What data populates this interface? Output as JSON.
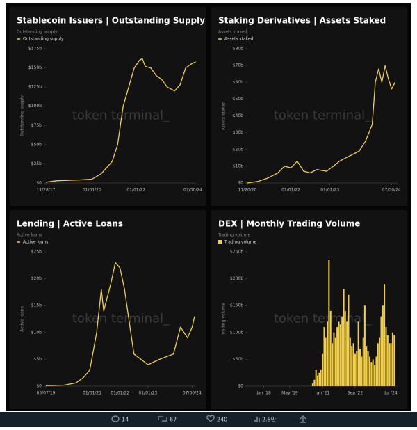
{
  "chart_data": [
    {
      "type": "line",
      "title": "Stablecoin Issuers | Outstanding Supply",
      "subtitle": "Outstanding supply",
      "y_label": "Outstanding supply",
      "watermark": "token terminal_",
      "x": [
        "2017-11-28",
        "2018-06-01",
        "2019-06-01",
        "2020-01-01",
        "2020-06-01",
        "2020-12-01",
        "2021-03-01",
        "2021-06-01",
        "2021-09-01",
        "2021-12-01",
        "2022-03-01",
        "2022-04-15",
        "2022-06-01",
        "2022-09-01",
        "2022-12-01",
        "2023-03-01",
        "2023-06-01",
        "2023-10-01",
        "2024-01-01",
        "2024-04-01",
        "2024-07-01",
        "2024-09-15"
      ],
      "series": [
        {
          "name": "Outstanding supply",
          "color": "#f2cf45",
          "values": [
            1,
            3,
            4,
            5,
            12,
            28,
            50,
            100,
            125,
            150,
            160,
            162,
            152,
            150,
            140,
            135,
            125,
            120,
            128,
            150,
            155,
            158
          ]
        }
      ],
      "xlim": [
        "2017-11-28",
        "2024-09-20"
      ],
      "xticks": [
        {
          "value": "2017-11-28",
          "label": "11/28/17"
        },
        {
          "value": "2020-01-01",
          "label": "01/01/20"
        },
        {
          "value": "2022-01-01",
          "label": "01/01/22"
        },
        {
          "value": "2024-07-30",
          "label": "07/30/24"
        }
      ],
      "ylim": [
        0,
        175
      ],
      "yticks": [
        {
          "value": 0,
          "label": "$0"
        },
        {
          "value": 25,
          "label": "$25b"
        },
        {
          "value": 50,
          "label": "$50b"
        },
        {
          "value": 75,
          "label": "$75b"
        },
        {
          "value": 100,
          "label": "$100b"
        },
        {
          "value": 125,
          "label": "$125b"
        },
        {
          "value": 150,
          "label": "$150b"
        },
        {
          "value": 175,
          "label": "$175b"
        }
      ]
    },
    {
      "type": "line",
      "title": "Staking Derivatives | Assets Staked",
      "subtitle": "Assets staked",
      "y_label": "Assets staked",
      "watermark": "token terminal_",
      "x": [
        "2020-11-20",
        "2021-03-01",
        "2021-06-01",
        "2021-09-01",
        "2021-11-01",
        "2022-01-01",
        "2022-03-01",
        "2022-05-01",
        "2022-07-01",
        "2022-09-01",
        "2022-12-01",
        "2023-02-01",
        "2023-04-01",
        "2023-07-01",
        "2023-10-01",
        "2023-12-01",
        "2024-02-01",
        "2024-03-01",
        "2024-04-01",
        "2024-05-01",
        "2024-06-01",
        "2024-07-01",
        "2024-08-01",
        "2024-09-01"
      ],
      "series": [
        {
          "name": "Assets staked",
          "color": "#f2cf45",
          "values": [
            0,
            1,
            3,
            6,
            10,
            9,
            13,
            7,
            6,
            8,
            7,
            10,
            13,
            16,
            19,
            25,
            35,
            60,
            68,
            60,
            70,
            62,
            56,
            60
          ]
        }
      ],
      "xlim": [
        "2020-11-20",
        "2024-09-25"
      ],
      "xticks": [
        {
          "value": "2020-11-20",
          "label": "11/20/20"
        },
        {
          "value": "2022-01-01",
          "label": "01/01/22"
        },
        {
          "value": "2023-01-01",
          "label": "01/01/23"
        },
        {
          "value": "2024-07-30",
          "label": "07/30/24"
        }
      ],
      "ylim": [
        0,
        80
      ],
      "yticks": [
        {
          "value": 0,
          "label": "$0"
        },
        {
          "value": 10,
          "label": "$10b"
        },
        {
          "value": 20,
          "label": "$20b"
        },
        {
          "value": 30,
          "label": "$30b"
        },
        {
          "value": 40,
          "label": "$40b"
        },
        {
          "value": 50,
          "label": "$50b"
        },
        {
          "value": 60,
          "label": "$60b"
        },
        {
          "value": 70,
          "label": "$70b"
        },
        {
          "value": 80,
          "label": "$80b"
        }
      ]
    },
    {
      "type": "line",
      "title": "Lending | Active Loans",
      "subtitle": "Active loans",
      "y_label": "Active loans",
      "watermark": "token terminal_",
      "x": [
        "2019-05-07",
        "2020-01-01",
        "2020-06-01",
        "2020-09-01",
        "2020-12-01",
        "2021-03-01",
        "2021-05-01",
        "2021-06-01",
        "2021-09-01",
        "2021-11-01",
        "2022-01-01",
        "2022-03-01",
        "2022-05-01",
        "2022-07-01",
        "2022-10-01",
        "2023-01-01",
        "2023-06-01",
        "2023-12-01",
        "2024-03-01",
        "2024-06-01",
        "2024-08-01",
        "2024-09-01"
      ],
      "series": [
        {
          "name": "Active loans",
          "color": "#f2cf45",
          "values": [
            0.1,
            0.2,
            0.6,
            1.5,
            3,
            10,
            18,
            14,
            19,
            23,
            22,
            18,
            12,
            6,
            5,
            4,
            5,
            6,
            11,
            9,
            11,
            13
          ]
        }
      ],
      "xlim": [
        "2019-05-07",
        "2024-09-20"
      ],
      "xticks": [
        {
          "value": "2019-05-07",
          "label": "05/07/19"
        },
        {
          "value": "2021-01-01",
          "label": "01/01/21"
        },
        {
          "value": "2022-01-01",
          "label": "01/01/22"
        },
        {
          "value": "2023-01-01",
          "label": "01/01/23"
        },
        {
          "value": "2024-07-30",
          "label": "07/30/24"
        }
      ],
      "ylim": [
        0,
        25
      ],
      "yticks": [
        {
          "value": 0,
          "label": "$0"
        },
        {
          "value": 5,
          "label": "$5b"
        },
        {
          "value": 10,
          "label": "$10b"
        },
        {
          "value": 15,
          "label": "$15b"
        },
        {
          "value": 20,
          "label": "$20b"
        },
        {
          "value": 25,
          "label": "$25b"
        }
      ]
    },
    {
      "type": "bar",
      "title": "DEX | Monthly Trading Volume",
      "subtitle": "Trading volume",
      "y_label": "Trading volume",
      "watermark": "token terminal_",
      "x": [
        "2020-07",
        "2020-08",
        "2020-09",
        "2020-10",
        "2020-11",
        "2020-12",
        "2021-01",
        "2021-02",
        "2021-03",
        "2021-04",
        "2021-05",
        "2021-06",
        "2021-07",
        "2021-08",
        "2021-09",
        "2021-10",
        "2021-11",
        "2021-12",
        "2022-01",
        "2022-02",
        "2022-03",
        "2022-04",
        "2022-05",
        "2022-06",
        "2022-07",
        "2022-08",
        "2022-09",
        "2022-10",
        "2022-11",
        "2022-12",
        "2023-01",
        "2023-02",
        "2023-03",
        "2023-04",
        "2023-05",
        "2023-06",
        "2023-07",
        "2023-08",
        "2023-09",
        "2023-10",
        "2023-11",
        "2023-12",
        "2024-01",
        "2024-02",
        "2024-03",
        "2024-04",
        "2024-05",
        "2024-06",
        "2024-07",
        "2024-08",
        "2024-09"
      ],
      "series": [
        {
          "name": "Trading volume",
          "color": "#f2cf45",
          "values": [
            5,
            12,
            30,
            20,
            25,
            30,
            60,
            110,
            90,
            120,
            235,
            140,
            80,
            100,
            90,
            110,
            120,
            115,
            130,
            180,
            140,
            120,
            170,
            90,
            75,
            80,
            60,
            65,
            120,
            70,
            55,
            90,
            150,
            75,
            65,
            55,
            45,
            50,
            40,
            55,
            80,
            90,
            130,
            150,
            190,
            110,
            95,
            80,
            80,
            100,
            95
          ]
        }
      ],
      "xlim": [
        "2017-03",
        "2024-11"
      ],
      "xticks": [
        {
          "value": "2018-01",
          "label": "Jan '18"
        },
        {
          "value": "2019-05",
          "label": "May '19"
        },
        {
          "value": "2021-01",
          "label": "Jan '21"
        },
        {
          "value": "2022-09",
          "label": "Sep '22"
        },
        {
          "value": "2024-07",
          "label": "Jul '24"
        }
      ],
      "ylim": [
        0,
        250
      ],
      "yticks": [
        {
          "value": 0,
          "label": "$0"
        },
        {
          "value": 50,
          "label": "$50b"
        },
        {
          "value": 100,
          "label": "$100b"
        },
        {
          "value": 150,
          "label": "$150b"
        },
        {
          "value": 200,
          "label": "$200b"
        },
        {
          "value": 250,
          "label": "$250b"
        }
      ]
    }
  ],
  "actions": {
    "replies": "14",
    "reposts": "67",
    "likes": "240",
    "views": "2.8만"
  }
}
